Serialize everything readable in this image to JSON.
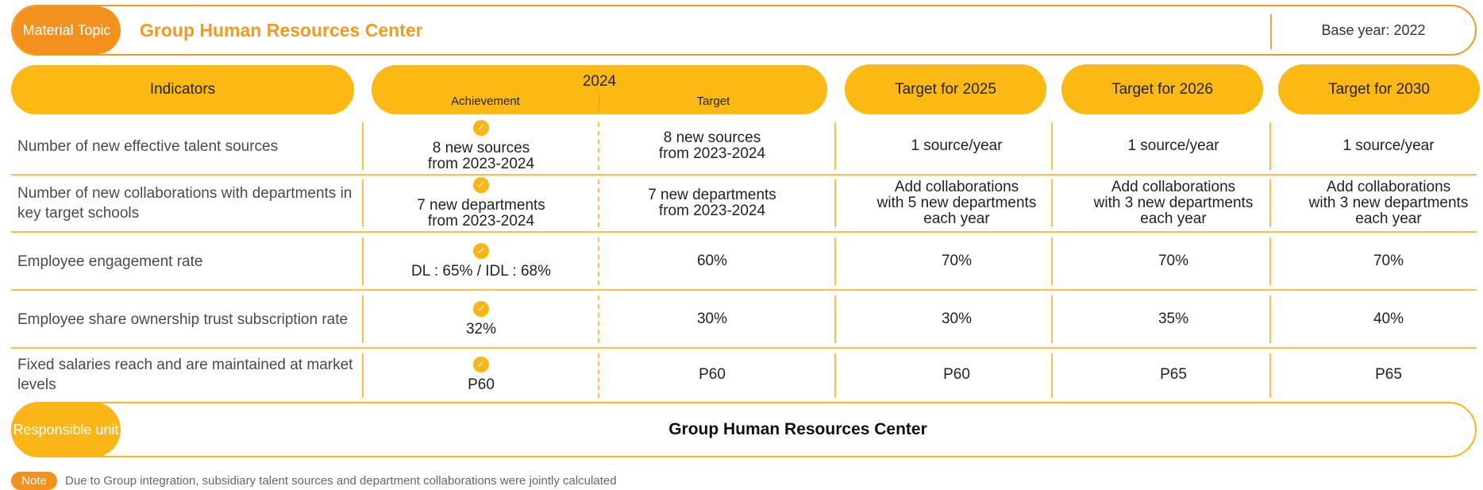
{
  "header": {
    "topic_label": "Material Topic",
    "topic_title": "Group Human Resources Center",
    "base_year": "Base year: 2022"
  },
  "columns": {
    "indicators": "Indicators",
    "year_2024": "2024",
    "achievement": "Achievement",
    "target": "Target",
    "target_2025": "Target for 2025",
    "target_2026": "Target for 2026",
    "target_2030": "Target for 2030"
  },
  "check_icon": "check-circle-icon",
  "rows": [
    {
      "indicator": "Number of new effective talent sources",
      "achievement": "8 new sources\nfrom 2023-2024",
      "target_2024": "8 new sources\nfrom 2023-2024",
      "target_2025": "1 source/year",
      "target_2026": "1 source/year",
      "target_2030": "1 source/year"
    },
    {
      "indicator": "Number of new collaborations with departments in key target schools",
      "achievement": "7 new departments\nfrom 2023-2024",
      "target_2024": "7 new departments\nfrom 2023-2024",
      "target_2025": "Add collaborations\nwith 5 new departments\neach year",
      "target_2026": "Add collaborations\nwith 3 new departments\neach year",
      "target_2030": "Add collaborations\nwith 3 new departments\neach year"
    },
    {
      "indicator": "Employee engagement rate",
      "achievement": "DL : 65% / IDL : 68%",
      "target_2024": "60%",
      "target_2025": "70%",
      "target_2026": "70%",
      "target_2030": "70%"
    },
    {
      "indicator": "Employee share ownership trust subscription rate",
      "achievement": "32%",
      "target_2024": "30%",
      "target_2025": "30%",
      "target_2026": "35%",
      "target_2030": "40%"
    },
    {
      "indicator": "Fixed salaries reach and are maintained at market levels",
      "achievement": "P60",
      "target_2024": "P60",
      "target_2025": "P60",
      "target_2026": "P65",
      "target_2030": "P65"
    }
  ],
  "responsible": {
    "label": "Responsible unit",
    "unit": "Group Human Resources Center"
  },
  "note": {
    "tag": "Note",
    "text": "Due to Group integration, subsidiary talent sources and department collaborations were jointly calculated"
  },
  "colors": {
    "orange": "#f3911f",
    "yellow": "#fbb516",
    "title_orange": "#f39a1c"
  }
}
